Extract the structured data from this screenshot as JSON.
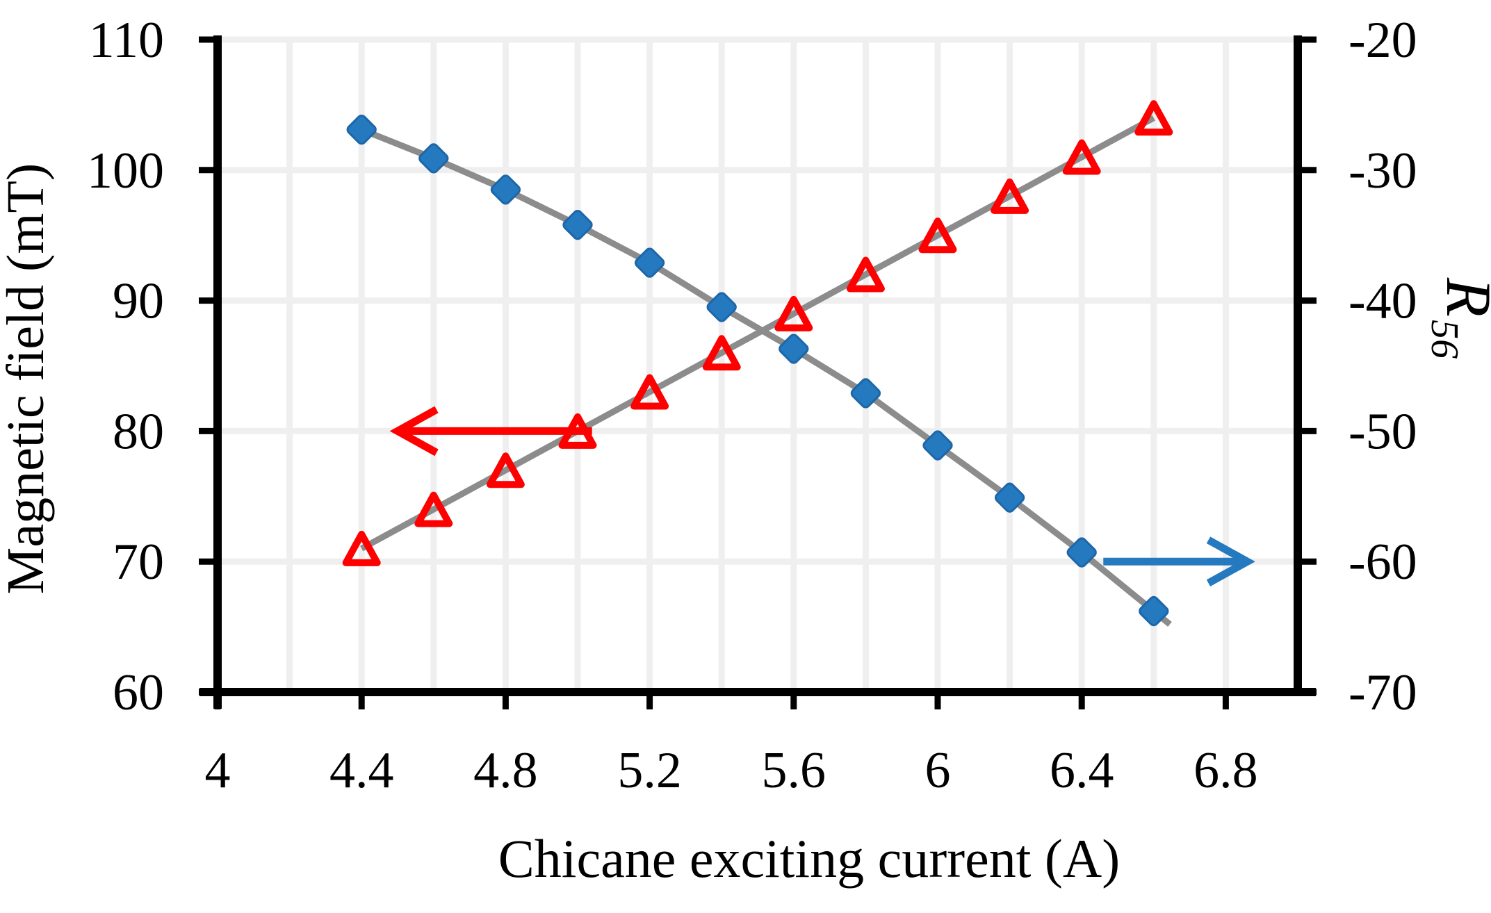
{
  "chart_data": {
    "type": "line",
    "title": "",
    "x": [
      4.4,
      4.6,
      4.8,
      5.0,
      5.2,
      5.4,
      5.6,
      5.8,
      6.0,
      6.2,
      6.4,
      6.6
    ],
    "xlabel": "Chicane exciting current (A)",
    "axes": {
      "x": {
        "label": "Chicane exciting current (A)",
        "range": [
          4.0,
          7.0
        ],
        "tick_values": [
          4,
          4.4,
          4.8,
          5.2,
          5.6,
          6,
          6.4,
          6.8
        ],
        "tick_labels": [
          "4",
          "4.4",
          "4.8",
          "5.2",
          "5.6",
          "6",
          "6.4",
          "6.8"
        ]
      },
      "left": {
        "label": "Magnetic field (mT)",
        "range": [
          60,
          110
        ],
        "tick_values": [
          60,
          70,
          80,
          90,
          100,
          110
        ],
        "tick_labels": [
          "60",
          "70",
          "80",
          "90",
          "100",
          "110"
        ]
      },
      "right": {
        "label_base": "R",
        "label_subscript": "56",
        "range": [
          -70,
          -20
        ],
        "tick_values": [
          -70,
          -60,
          -50,
          -40,
          -30,
          -20
        ],
        "tick_labels": [
          "-70",
          "-60",
          "-50",
          "-40",
          "-30",
          "-20"
        ]
      }
    },
    "grid": {
      "show": true,
      "color": "#EFEFEF",
      "x_step": 0.2,
      "y_step": 10
    },
    "series": [
      {
        "name": "Magnetic field",
        "axis": "left",
        "marker": "open-triangle",
        "marker_color": "#FF0000",
        "line_color": "#8C8C8C",
        "values": [
          71,
          74,
          77,
          80,
          83,
          86,
          89,
          92,
          95,
          98,
          101,
          104
        ]
      },
      {
        "name": "R56",
        "axis": "right",
        "marker": "filled-diamond",
        "marker_color": "#2479BF",
        "marker_edge_color": "#1D67A9",
        "line_color": "#8C8C8C",
        "values": [
          -26.9,
          -29.1,
          -31.5,
          -34.2,
          -37.1,
          -40.5,
          -43.7,
          -47.1,
          -51.1,
          -55.1,
          -59.3,
          -63.8
        ]
      }
    ],
    "annotations": {
      "arrows": [
        {
          "name": "magnetic-field-axis-arrow",
          "color": "#FF0000",
          "points_to": "left-axis",
          "axis": "left",
          "y_value": 80,
          "x_tail": 5.04,
          "x_tip": 4.5,
          "direction": "left"
        },
        {
          "name": "r56-axis-arrow",
          "color": "#2479BF",
          "points_to": "right-axis",
          "axis": "right",
          "y_value": -60,
          "x_tail": 6.46,
          "x_tip": 6.86,
          "direction": "right"
        }
      ]
    },
    "style": {
      "axis_color": "#000000",
      "series_line_color": "#8C8C8C",
      "gridline_color": "#EFEFEF",
      "background": "#FFFFFF"
    }
  }
}
